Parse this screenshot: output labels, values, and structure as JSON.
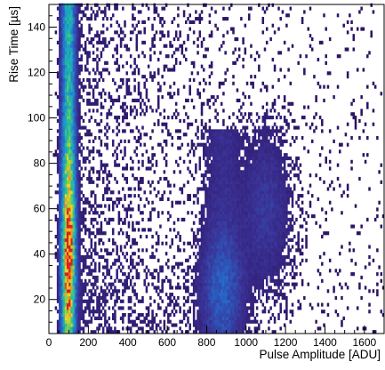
{
  "chart_data": {
    "type": "heatmap",
    "title": "",
    "xlabel": "Pulse Amplitude [ADU]",
    "ylabel": "Rise Time [µs]",
    "xlim": [
      0,
      1700
    ],
    "ylim": [
      5,
      150
    ],
    "xticks": [
      0,
      200,
      400,
      600,
      800,
      1000,
      1200,
      1400,
      1600
    ],
    "yticks": [
      20,
      40,
      60,
      80,
      100,
      120,
      140
    ],
    "bin_width_x": 10,
    "bin_width_y": 1.5,
    "colormap": "dark-purple to blue, teal, green, yellow, orange, red; white for empty bins",
    "grid": false,
    "legend": "none",
    "components": [
      {
        "name": "",
        "x_center": 100,
        "x_width": 28,
        "y_range": [
          5,
          150
        ],
        "y_peak": 42,
        "relative_density": 1.0
      },
      {
        "name": "",
        "x_center": 880,
        "x_width": 90,
        "y_range": [
          5,
          95
        ],
        "y_peak": 25,
        "relative_density": 0.12
      },
      {
        "name": "",
        "x_center": 1100,
        "x_width": 110,
        "y_range": [
          10,
          105
        ],
        "y_peak": 60,
        "relative_density": 0.05
      },
      {
        "name": "",
        "x_range": [
          50,
          1700
        ],
        "y_range": [
          5,
          150
        ],
        "relative_density": 0.01
      }
    ]
  }
}
